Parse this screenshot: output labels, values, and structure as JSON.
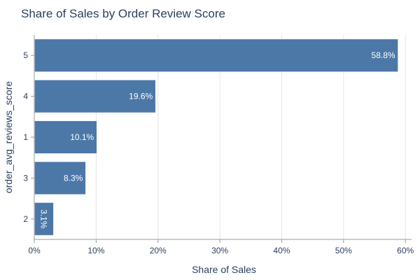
{
  "chart_data": {
    "type": "bar",
    "orientation": "horizontal",
    "title": "Share of Sales by Order Review Score",
    "xlabel": "Share of Sales",
    "ylabel": "order_avg_reviews_score",
    "categories": [
      "5",
      "4",
      "1",
      "3",
      "2"
    ],
    "values": [
      58.8,
      19.6,
      10.1,
      8.3,
      3.1
    ],
    "data_labels": [
      "58.8%",
      "19.6%",
      "10.1%",
      "8.3%",
      "3.1%"
    ],
    "xlim": [
      0,
      61
    ],
    "x_ticks": [
      0,
      10,
      20,
      30,
      40,
      50,
      60
    ],
    "x_tick_labels": [
      "0%",
      "10%",
      "20%",
      "30%",
      "40%",
      "50%",
      "60%"
    ],
    "grid": true,
    "bar_color": "#4c78a8"
  }
}
